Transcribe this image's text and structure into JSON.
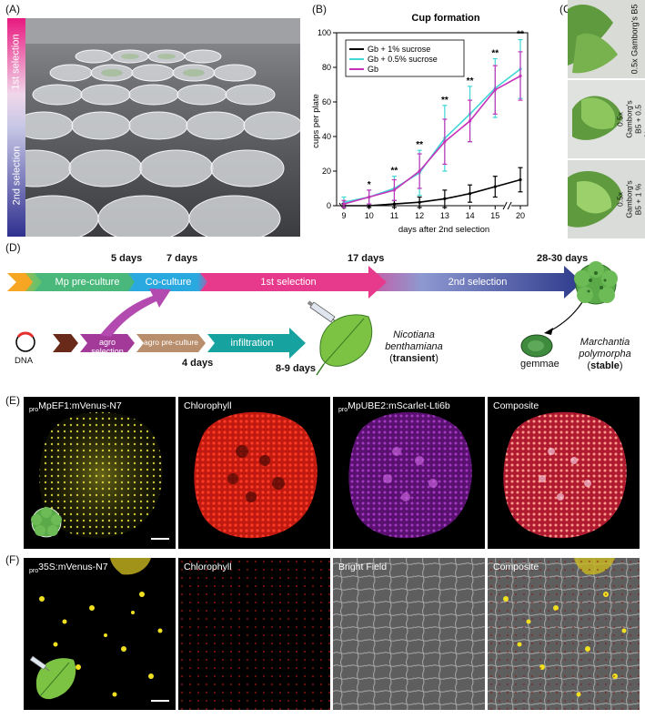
{
  "panelA": {
    "label": "(A)",
    "first_selection": "1st selection",
    "second_selection": "2nd selection"
  },
  "panelB": {
    "label": "(B)",
    "title": "Cup formation",
    "ylabel": "cups per plate",
    "xlabel": "days after 2nd selection",
    "yticks": [
      "0",
      "20",
      "40",
      "60",
      "80",
      "100"
    ],
    "xticks": [
      "9",
      "10",
      "11",
      "12",
      "13",
      "14",
      "15",
      "20"
    ],
    "significance": [
      "*",
      "**",
      "**",
      "**",
      "**",
      "**",
      "**"
    ]
  },
  "chart_data": {
    "type": "line",
    "title": "Cup formation",
    "xlabel": "days after 2nd selection",
    "ylabel": "cups per plate",
    "ylim": [
      0,
      100
    ],
    "categories": [
      "9",
      "10",
      "11",
      "12",
      "13",
      "14",
      "15",
      "20"
    ],
    "series": [
      {
        "name": "Gb + 1% sucrose",
        "color": "#000000",
        "values": [
          0,
          0,
          1,
          2,
          4,
          7,
          11,
          15
        ],
        "err": [
          1,
          1,
          2,
          3,
          5,
          5,
          6,
          7
        ]
      },
      {
        "name": "Gb + 0.5% sucrose",
        "color": "#3fd6d6",
        "values": [
          2,
          5,
          10,
          19,
          39,
          53,
          68,
          79
        ],
        "err": [
          3,
          4,
          7,
          13,
          19,
          16,
          17,
          17
        ]
      },
      {
        "name": "Gb",
        "color": "#c531b8",
        "values": [
          1,
          5,
          9,
          20,
          37,
          49,
          67,
          75
        ],
        "err": [
          2,
          4,
          6,
          10,
          13,
          12,
          14,
          14
        ]
      }
    ],
    "significance": [
      "",
      "*",
      "**",
      "**",
      "**",
      "**",
      "**",
      "**"
    ]
  },
  "panelC": {
    "label": "(C)",
    "rows": [
      "0.5x Gamborg's B5",
      "0.5x Gamborg's B5 + 0.5 % sucrose",
      "0.5x Gamborg's B5 + 1 % sucrose"
    ]
  },
  "panelD": {
    "label": "(D)",
    "time_5": "5 days",
    "time_7": "7 days",
    "time_17": "17 days",
    "time_28": "28-30 days",
    "mp_preculture": "Mp pre-culture",
    "coculture": "Co-culture",
    "first_selection": "1st selection",
    "second_selection": "2nd selection",
    "agro_selection": "agro selection",
    "agro_preculture": "agro pre-culture",
    "infiltration": "infiltration",
    "time_4": "4 days",
    "time_89": "8-9 days",
    "dna": "DNA",
    "nb_line1": "Nicotiana",
    "nb_line2": "benthamiana",
    "nb_type": "transient",
    "gemmae": "gemmae",
    "mp_line1": "Marchantia",
    "mp_line2": "polymorpha",
    "mp_type": "stable"
  },
  "panelE": {
    "label": "(E)",
    "tiles": [
      {
        "pre": "pro",
        "name": "MpEF1:mVenus-N7"
      },
      {
        "pre": "",
        "name": "Chlorophyll"
      },
      {
        "pre": "pro",
        "name": "MpUBE2:mScarlet-Lti6b"
      },
      {
        "pre": "",
        "name": "Composite"
      }
    ]
  },
  "panelF": {
    "label": "(F)",
    "tiles": [
      {
        "pre": "pro",
        "name": "35S:mVenus-N7"
      },
      {
        "pre": "",
        "name": "Chlorophyll"
      },
      {
        "pre": "",
        "name": "Bright Field"
      },
      {
        "pre": "",
        "name": "Composite"
      }
    ]
  },
  "colors": {
    "magenta": "#e83a8c",
    "navy": "#2e3b8c",
    "mp_orange": "#f6a623",
    "mp_green": "#49b87a",
    "coculture_blue": "#2aa9e0",
    "agro_purple": "#a33a9a",
    "infiltration_teal": "#1aa39a",
    "leaf_green": "#6cc33a"
  }
}
